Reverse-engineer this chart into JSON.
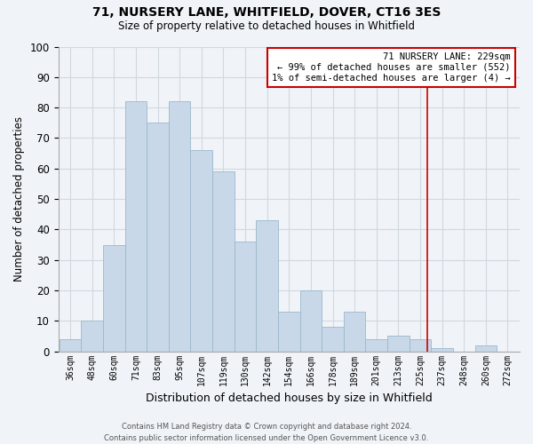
{
  "title1": "71, NURSERY LANE, WHITFIELD, DOVER, CT16 3ES",
  "title2": "Size of property relative to detached houses in Whitfield",
  "xlabel": "Distribution of detached houses by size in Whitfield",
  "ylabel": "Number of detached properties",
  "bar_labels": [
    "36sqm",
    "48sqm",
    "60sqm",
    "71sqm",
    "83sqm",
    "95sqm",
    "107sqm",
    "119sqm",
    "130sqm",
    "142sqm",
    "154sqm",
    "166sqm",
    "178sqm",
    "189sqm",
    "201sqm",
    "213sqm",
    "225sqm",
    "237sqm",
    "248sqm",
    "260sqm",
    "272sqm"
  ],
  "bar_values": [
    4,
    10,
    35,
    82,
    75,
    82,
    66,
    59,
    36,
    43,
    13,
    20,
    8,
    13,
    4,
    5,
    4,
    1,
    0,
    2,
    0
  ],
  "bar_color": "#c8d8e8",
  "bar_edge_color": "#9ab8cc",
  "grid_color": "#d0d8e0",
  "vline_color": "#cc0000",
  "annotation_line1": "71 NURSERY LANE: 229sqm",
  "annotation_line2": "← 99% of detached houses are smaller (552)",
  "annotation_line3": "1% of semi-detached houses are larger (4) →",
  "annotation_box_color": "#ffffff",
  "annotation_box_edge": "#cc0000",
  "footnote": "Contains HM Land Registry data © Crown copyright and database right 2024.\nContains public sector information licensed under the Open Government Licence v3.0.",
  "ylim": [
    0,
    100
  ],
  "background_color": "#f0f4f8",
  "vline_index": 16.33
}
